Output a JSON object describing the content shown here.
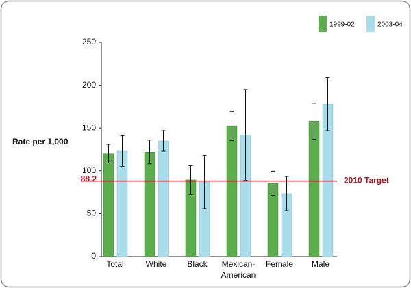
{
  "chart_data": {
    "type": "bar",
    "y_label": "Rate per 1,000",
    "categories": [
      "Total",
      "White",
      "Black",
      "Mexican-American",
      "Female",
      "Male"
    ],
    "series": [
      {
        "name": "1999-02",
        "color": "#5cad4c",
        "values": [
          120,
          122,
          89.5,
          152.5,
          85.5,
          158
        ],
        "errors": [
          11,
          14,
          17,
          17,
          14,
          21
        ]
      },
      {
        "name": "2003-04",
        "color": "#a9dde9",
        "values": [
          123,
          135,
          87,
          142,
          73.5,
          178
        ],
        "errors": [
          18,
          12,
          31,
          53,
          20,
          31
        ]
      }
    ],
    "reference_line": {
      "value": 88.2,
      "label": "2010 Target",
      "color": "#b5121b"
    },
    "ylim": [
      0,
      250
    ],
    "yticks": [
      0,
      50,
      100,
      150,
      200,
      250
    ],
    "legend": "top-right"
  }
}
